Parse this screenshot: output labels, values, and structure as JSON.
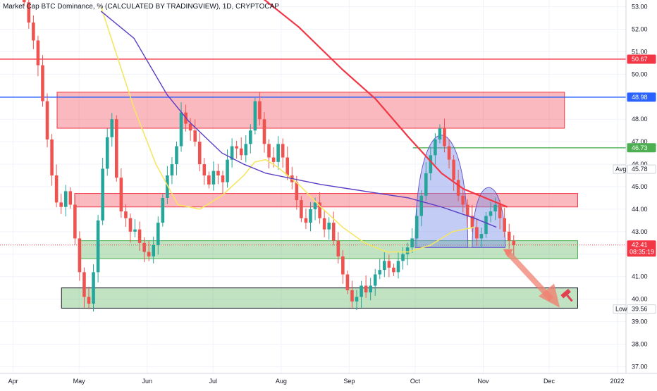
{
  "header": {
    "title": "Market Cap BTC Dominance, % (CALCULATED BY TRADINGVIEW), 1D, CRYPTOCAP"
  },
  "chart_data": {
    "type": "candlestick",
    "y_axis": {
      "ticks": [
        "53.00",
        "52.00",
        "51.00",
        "50.00",
        "49.00",
        "48.00",
        "47.00",
        "46.00",
        "45.00",
        "44.00",
        "43.00",
        "42.00",
        "41.00",
        "40.00",
        "39.00",
        "38.00",
        "37.00"
      ],
      "ylim": [
        36.7,
        53.3
      ]
    },
    "x_axis": {
      "ticks": [
        "Apr",
        "May",
        "Jun",
        "Jul",
        "Aug",
        "Sep",
        "Oct",
        "Nov",
        "Dec",
        "2022"
      ],
      "tick_days": [
        0,
        30,
        61,
        91,
        122,
        153,
        183,
        214,
        244,
        275
      ],
      "xlim": [
        -6,
        279
      ]
    },
    "price_tags": [
      {
        "id": "red-line",
        "label": "50.67",
        "value": 50.67,
        "color": "#f23645"
      },
      {
        "id": "blue-line",
        "label": "48.98",
        "value": 48.98,
        "color": "#2962ff"
      },
      {
        "id": "green-target",
        "label": "46.73",
        "value": 46.73,
        "color": "#4caf50"
      },
      {
        "id": "avg",
        "label": "45.78",
        "value": 45.78,
        "color": "#ffffff",
        "prefix": "Avg"
      },
      {
        "id": "current",
        "label": "42.41",
        "value": 42.41,
        "color": "#f23645",
        "sub": "08:35:19"
      },
      {
        "id": "low",
        "label": "39.56",
        "value": 39.56,
        "color": "#ffffff",
        "prefix": "Low"
      }
    ],
    "zones": [
      {
        "name": "upper-resistance",
        "x": [
          20,
          251
        ],
        "y": [
          47.6,
          49.2
        ],
        "color": "#f23645"
      },
      {
        "name": "mid-resistance",
        "x": [
          28,
          257
        ],
        "y": [
          44.1,
          44.7
        ],
        "color": "#f23645"
      },
      {
        "name": "mid-support",
        "x": [
          30,
          257
        ],
        "y": [
          41.8,
          42.6
        ],
        "color": "#4caf50"
      },
      {
        "name": "lower-support",
        "x": [
          22,
          257
        ],
        "y": [
          39.6,
          40.5
        ],
        "color": "#4caf50"
      }
    ],
    "levels": [
      {
        "name": "red-hline",
        "value": 50.67,
        "x": [
          -6,
          257
        ],
        "color": "#f23645"
      },
      {
        "name": "blue-hline",
        "value": 48.98,
        "x": [
          -6,
          257
        ],
        "color": "#2962ff"
      },
      {
        "name": "green-hline",
        "value": 46.73,
        "x": [
          182,
          257
        ],
        "color": "#4caf50"
      }
    ],
    "ma_long": {
      "color": "#f23645",
      "x": [
        112,
        130,
        150,
        165,
        180,
        195,
        205,
        215,
        225
      ],
      "y": [
        53.5,
        52.1,
        50.2,
        48.9,
        47.2,
        45.6,
        44.9,
        44.5,
        44.1
      ]
    },
    "ma_mid": {
      "color": "#5b3cc4",
      "x": [
        40,
        55,
        70,
        80,
        95,
        105,
        115,
        130,
        140,
        160,
        180,
        195,
        210,
        220
      ],
      "y": [
        52.8,
        51.6,
        49.1,
        47.9,
        46.5,
        46.0,
        45.6,
        45.3,
        45.1,
        44.8,
        44.5,
        44.1,
        43.6,
        43.2
      ]
    },
    "ma_short": {
      "color": "#f5e663",
      "x": [
        40,
        45,
        55,
        65,
        75,
        85,
        95,
        105,
        110,
        115,
        120,
        130,
        140,
        150,
        160,
        170,
        180,
        190,
        200,
        210
      ],
      "y": [
        53.0,
        51.5,
        48.5,
        46.0,
        44.2,
        44.0,
        44.6,
        45.5,
        46.1,
        46.2,
        45.9,
        45.1,
        44.1,
        43.2,
        42.5,
        42.1,
        42.1,
        42.4,
        43.0,
        43.2
      ]
    },
    "series": [
      {
        "name": "BTC.D",
        "close": [
          53.2,
          52.3,
          51.5,
          50.4,
          48.8,
          47.1,
          45.5,
          44.3,
          44.1,
          44.8,
          44.2,
          42.7,
          41.2,
          40.1,
          39.8,
          41.2,
          43.5,
          45.8,
          47.2,
          48.0,
          45.4,
          43.9,
          43.6,
          43.0,
          43.1,
          42.5,
          42.1,
          41.9,
          42.4,
          43.4,
          44.5,
          45.5,
          46.0,
          46.8,
          48.3,
          47.8,
          47.5,
          47.0,
          46.0,
          45.5,
          45.1,
          45.7,
          45.5,
          45.2,
          46.2,
          46.8,
          46.7,
          46.4,
          46.9,
          47.5,
          48.8,
          48.0,
          46.9,
          46.3,
          46.1,
          46.9,
          46.3,
          45.5,
          45.2,
          44.4,
          43.6,
          43.4,
          44.0,
          44.3,
          43.6,
          43.1,
          43.4,
          42.6,
          41.9,
          41.1,
          40.4,
          39.9,
          40.1,
          40.6,
          40.3,
          40.6,
          41.1,
          41.3,
          41.7,
          41.4,
          41.2,
          41.7,
          42.0,
          42.3,
          42.7,
          43.7,
          44.6,
          45.6,
          46.4,
          47.1,
          47.6,
          46.8,
          46.2,
          45.3,
          44.6,
          44.2,
          43.7,
          43.2,
          42.7,
          42.9,
          43.7,
          43.9,
          44.2,
          43.6,
          43.0,
          42.6,
          42.4
        ],
        "high_pad": 0.35,
        "low_pad": 0.35,
        "up_color": "#26a69a",
        "down_color": "#ef5350"
      }
    ],
    "annotations": [
      {
        "name": "head-and-shoulders-pattern",
        "color": "#7b8fe8"
      },
      {
        "name": "down-arrow",
        "color": "#f08070"
      },
      {
        "name": "hammer-icon",
        "color": "#e04050"
      }
    ]
  }
}
